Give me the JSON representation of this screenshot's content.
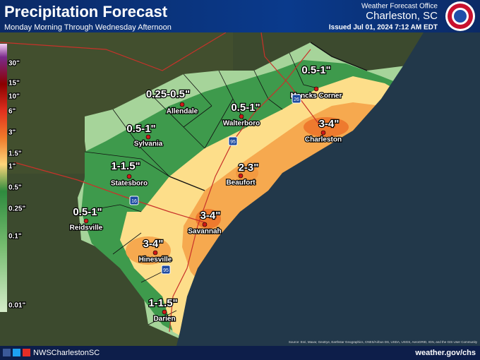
{
  "header": {
    "title": "Precipitation Forecast",
    "subtitle": "Monday Morning Through Wednesday Afternoon",
    "office": "Weather Forecast Office",
    "location": "Charleston, SC",
    "issued": "Issued Jul 01, 2024 7:12 AM EDT"
  },
  "legend": {
    "labels": [
      "30\"",
      "15\"",
      "10\"",
      "6\"",
      "3\"",
      "1.5\"",
      "1\"",
      "0.5\"",
      "0.25\"",
      "0.1\"",
      "0.01\""
    ]
  },
  "map": {
    "amounts": [
      "0.5-1\"",
      "0.25-0.5\"",
      "0.5-1\"",
      "0.5-1\"",
      "1-1.5\"",
      "2-3\"",
      "3-4\"",
      "3-4\"",
      "0.5-1\"",
      "3-4\"",
      "1-1.5\""
    ],
    "cities": [
      "Moncks Corner",
      "Allendale",
      "Walterboro",
      "Charleston",
      "Sylvania",
      "Statesboro",
      "Beaufort",
      "Savannah",
      "Reidsville",
      "Hinesville",
      "Darien"
    ],
    "highways": [
      "26",
      "95",
      "16",
      "95"
    ],
    "source": "Source: Esri, Maxar, GeoEye, Earthstar Geographics, CNES/Airbus DS, USDA, USGS, AeroGRID, IGN, and the GIS User Community"
  },
  "footer": {
    "social": "NWSCharlestonSC",
    "website": "weather.gov/chs"
  }
}
